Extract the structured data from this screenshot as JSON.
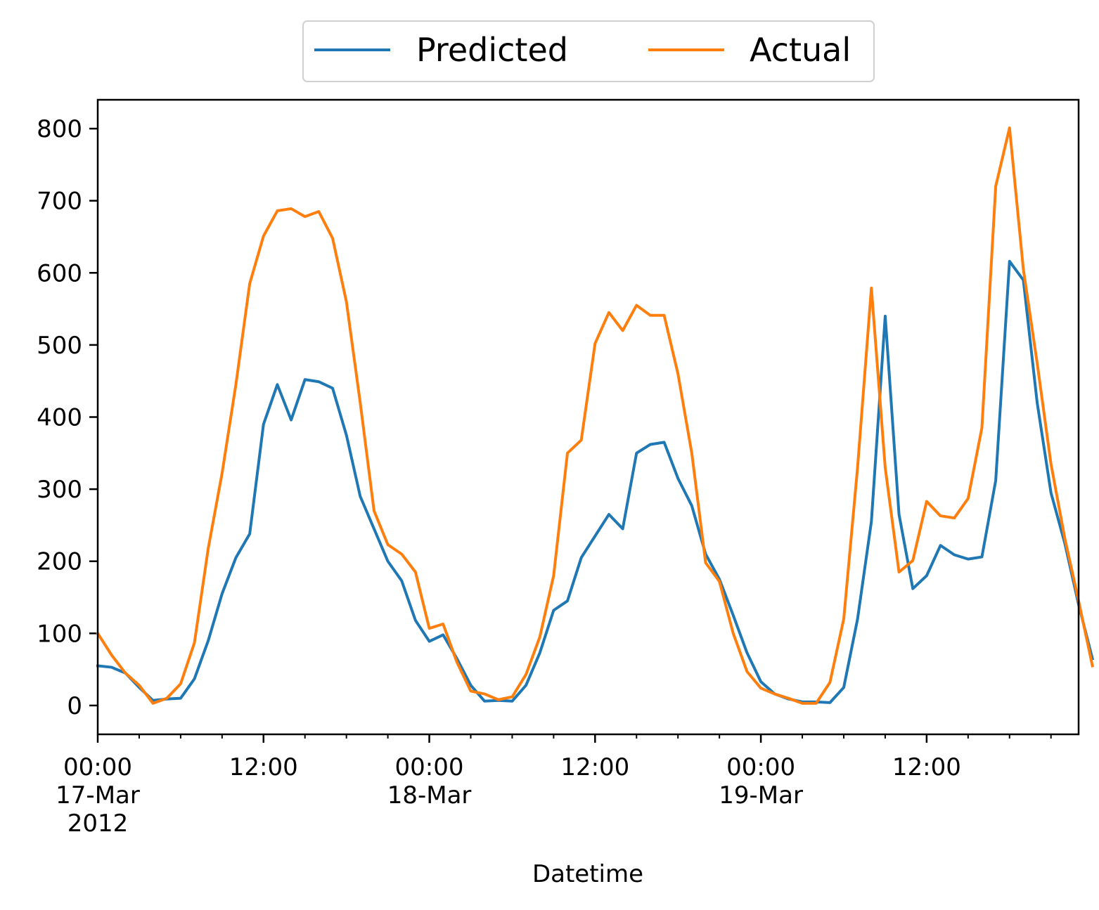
{
  "chart_data": {
    "type": "line",
    "title": "",
    "xlabel": "Datetime",
    "ylabel": "",
    "xlim": [
      "2012-03-17 00:00",
      "2012-03-19 23:00"
    ],
    "ylim": [
      -40,
      840
    ],
    "yticks": [
      0,
      100,
      200,
      300,
      400,
      500,
      600,
      700,
      800
    ],
    "xticks": [
      {
        "at": "2012-03-17 00:00",
        "lines": [
          "00:00",
          "17-Mar",
          "2012"
        ]
      },
      {
        "at": "2012-03-17 12:00",
        "lines": [
          "12:00"
        ]
      },
      {
        "at": "2012-03-18 00:00",
        "lines": [
          "00:00",
          "18-Mar"
        ]
      },
      {
        "at": "2012-03-18 12:00",
        "lines": [
          "12:00"
        ]
      },
      {
        "at": "2012-03-19 00:00",
        "lines": [
          "00:00",
          "19-Mar"
        ]
      },
      {
        "at": "2012-03-19 12:00",
        "lines": [
          "12:00"
        ]
      }
    ],
    "grid": false,
    "legend": {
      "placement": "top-center, above plot",
      "columns": 2
    },
    "x_start": "2012-03-17 00:00",
    "x_step": "1 hour",
    "series": [
      {
        "name": "Predicted",
        "color": "#1f77b4",
        "values": [
          55,
          53,
          45,
          25,
          7,
          9,
          10,
          37,
          90,
          155,
          205,
          238,
          390,
          445,
          396,
          452,
          449,
          440,
          375,
          290,
          245,
          200,
          173,
          118,
          89,
          98,
          65,
          28,
          6,
          7,
          6,
          28,
          73,
          132,
          145,
          205,
          235,
          265,
          245,
          350,
          362,
          365,
          315,
          277,
          210,
          175,
          125,
          73,
          33,
          16,
          9,
          5,
          5,
          4,
          25,
          120,
          255,
          540,
          265,
          162,
          180,
          222,
          209,
          203,
          206,
          312,
          616,
          590,
          420,
          295,
          225,
          140,
          65
        ]
      },
      {
        "name": "Actual",
        "color": "#ff7f0e",
        "values": [
          100,
          70,
          45,
          28,
          3,
          10,
          30,
          87,
          218,
          322,
          445,
          585,
          651,
          686,
          689,
          678,
          685,
          648,
          560,
          420,
          270,
          223,
          210,
          185,
          107,
          113,
          60,
          20,
          16,
          8,
          12,
          43,
          95,
          180,
          350,
          368,
          502,
          545,
          520,
          555,
          541,
          541,
          460,
          350,
          198,
          172,
          100,
          47,
          24,
          16,
          10,
          3,
          3,
          32,
          120,
          330,
          579,
          330,
          185,
          201,
          283,
          263,
          260,
          287,
          385,
          720,
          801,
          605,
          475,
          335,
          232,
          145,
          55
        ]
      }
    ]
  }
}
